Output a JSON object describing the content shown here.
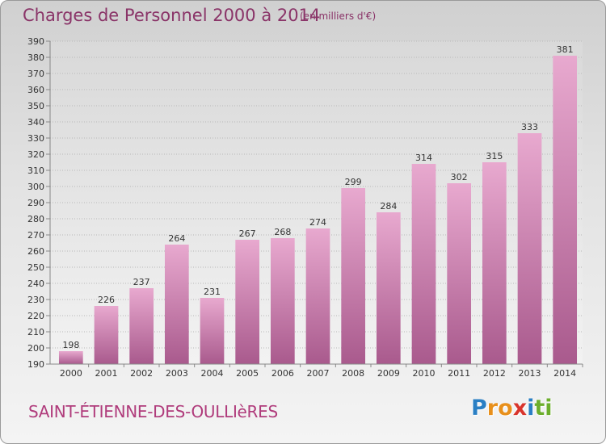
{
  "header": {
    "title": "Charges de Personnel 2000 à 2014",
    "subtitle": "(en milliers d'€)"
  },
  "footer": {
    "commune": "SAINT-ÉTIENNE-DES-OULLIèRES",
    "logo": {
      "text": "Proxiti",
      "letters": [
        {
          "char": "P",
          "color": "#2a7fc4"
        },
        {
          "char": "r",
          "color": "#e8901c"
        },
        {
          "char": "o",
          "color": "#e8901c"
        },
        {
          "char": "x",
          "color": "#d8342c"
        },
        {
          "char": "i",
          "color": "#2a7fc4"
        },
        {
          "char": "t",
          "color": "#6cae2c"
        },
        {
          "char": "i",
          "color": "#6cae2c"
        }
      ]
    }
  },
  "colors": {
    "bar_top": "#e8a9cf",
    "bar_bottom": "#a95a8d",
    "title": "#8a3468",
    "commune": "#b03c7c",
    "grid": "#b8b8b8"
  },
  "chart_data": {
    "type": "bar",
    "title": "Charges de Personnel 2000 à 2014",
    "subtitle": "(en milliers d'€)",
    "categories": [
      "2000",
      "2001",
      "2002",
      "2003",
      "2004",
      "2005",
      "2006",
      "2007",
      "2008",
      "2009",
      "2010",
      "2011",
      "2012",
      "2013",
      "2014"
    ],
    "values": [
      198,
      226,
      237,
      264,
      231,
      267,
      268,
      274,
      299,
      284,
      314,
      302,
      315,
      333,
      381
    ],
    "xlabel": "",
    "ylabel": "",
    "ylim": [
      190,
      390
    ],
    "ytick_step": 10,
    "grid": true,
    "data_labels": true
  }
}
